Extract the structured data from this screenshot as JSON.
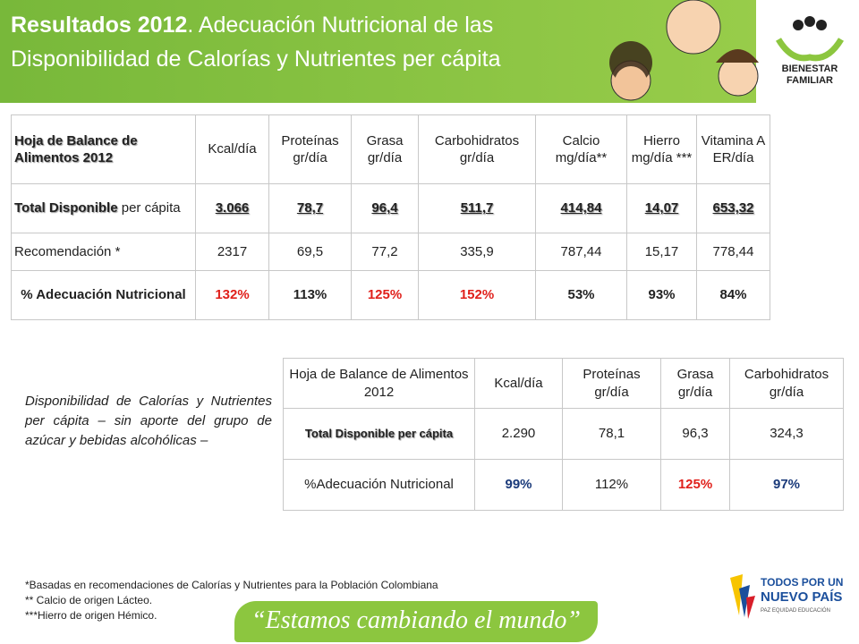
{
  "header": {
    "title_bold": "Resultados 2012",
    "title_line1": ". Adecuación Nutricional de las",
    "title_line2": "Disponibilidad de Calorías y Nutrientes per cápita",
    "logo_line1": "BIENESTAR",
    "logo_line2": "FAMILIAR"
  },
  "table1": {
    "header": [
      "Hoja de Balance de Alimentos 2012",
      "Kcal/día",
      "Proteínas gr/día",
      "Grasa gr/día",
      "Carbohidratos gr/día",
      "Calcio mg/día**",
      "Hierro mg/día ***",
      "Vitamina A ER/día"
    ],
    "rows": [
      [
        {
          "bold": "Total Disponible",
          "rest": "per cápita"
        },
        "3.066",
        "78,7",
        "96,4",
        "511,7",
        "414,84",
        "14,07",
        "653,32"
      ],
      [
        "Recomendación *",
        "2317",
        "69,5",
        "77,2",
        "335,9",
        "787,44",
        "15,17",
        "778,44"
      ],
      [
        "% Adecuación Nutricional",
        "132%",
        "113%",
        "125%",
        "152%",
        "53%",
        "93%",
        "84%"
      ]
    ]
  },
  "side_note": "Disponibilidad de Calorías y Nutrientes per cápita – sin aporte del grupo de azúcar y bebidas alcohólicas –",
  "table2": {
    "header": [
      "Hoja de Balance de Alimentos 2012",
      "Kcal/día",
      "Proteínas gr/día",
      "Grasa gr/día",
      "Carbohidratos gr/día"
    ],
    "rows": [
      [
        "Total Disponible per cápita",
        "2.290",
        "78,1",
        "96,3",
        "324,3"
      ],
      [
        "%Adecuación Nutricional",
        "99%",
        "112%",
        "125%",
        "97%"
      ]
    ]
  },
  "footnotes": [
    "*Basadas en recomendaciones de Calorías y Nutrientes para la Población Colombiana",
    "** Calcio de origen Lácteo.",
    "***Hierro de origen Hémico."
  ],
  "footer": {
    "slogan": "“Estamos cambiando el mundo”",
    "logo_line1": "TODOS POR UN",
    "logo_line2": "NUEVO PAÍS",
    "logo_line3": "PAZ EQUIDAD EDUCACIÓN"
  }
}
